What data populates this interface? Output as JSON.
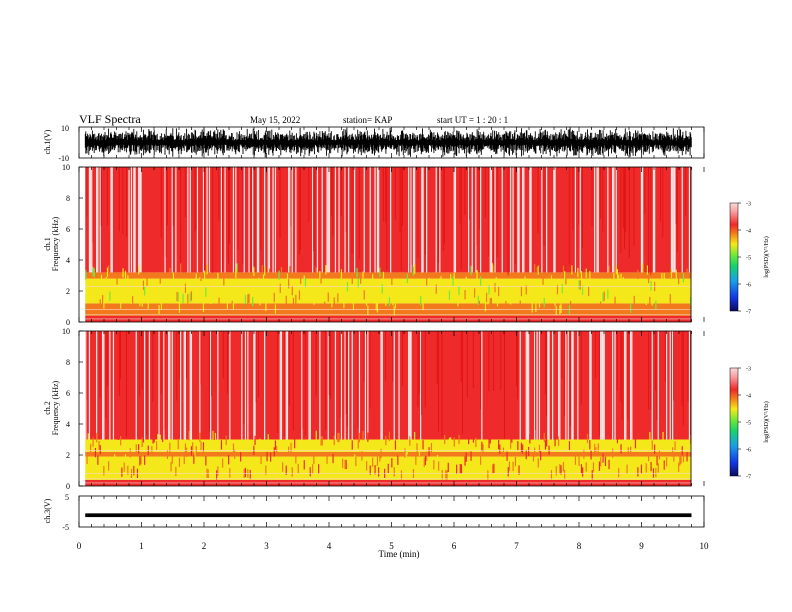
{
  "header": {
    "title": "VLF Spectra",
    "date": "May 15, 2022",
    "station": "station= KAP",
    "start": "start  UT =   1 : 20 : 1"
  },
  "colors": {
    "spectrogram_base": "#ee1c1c",
    "colormap": [
      "#f8dada",
      "#f7a0a0",
      "#ee2a2a",
      "#f27a1c",
      "#f5e81a",
      "#74e83a",
      "#18d26a",
      "#1a9ee8",
      "#1534e0",
      "#0a0a5c"
    ]
  },
  "chart_data": [
    {
      "id": "ch1-waveform",
      "type": "line",
      "ylabel": "ch.1(V)",
      "ylim": [
        -10,
        10
      ],
      "yticks": [
        "10",
        "-10"
      ],
      "xlim": [
        0,
        10
      ],
      "trace": "dense oscillating waveform spanning roughly -10 to 10 V, start ~0.1 min, end ~9.8 min"
    },
    {
      "id": "ch1-spectrogram",
      "type": "heatmap",
      "ylabel_line1": "ch.1",
      "ylabel_line2": "Frequency  (kHz)",
      "ylim": [
        0,
        10
      ],
      "yticks": [
        "10",
        "8",
        "6",
        "4",
        "2",
        "0"
      ],
      "xlim": [
        0,
        10
      ],
      "colorbar": {
        "label": "log(PSD)(V²/Hz)",
        "range": [
          -7,
          -3
        ],
        "ticks": [
          "-3",
          "-4",
          "-5",
          "-6",
          "-7"
        ]
      },
      "bands": [
        {
          "freq_khz": [
            0,
            0.4
          ],
          "level": -3.3
        },
        {
          "freq_khz": [
            0.4,
            1.2
          ],
          "level": -3.8
        },
        {
          "freq_khz": [
            1.2,
            2.8
          ],
          "level": -4.4
        },
        {
          "freq_khz": [
            2.8,
            3.2
          ],
          "level": -4.0
        },
        {
          "freq_khz": [
            3.2,
            10
          ],
          "level": -3.6
        }
      ]
    },
    {
      "id": "ch2-spectrogram",
      "type": "heatmap",
      "ylabel_line1": "ch.2",
      "ylabel_line2": "Frequency  (kHz)",
      "ylim": [
        0,
        10
      ],
      "yticks": [
        "10",
        "8",
        "6",
        "4",
        "2",
        "0"
      ],
      "xlim": [
        0,
        10
      ],
      "colorbar": {
        "label": "log(PSD)(V²/Hz)",
        "range": [
          -7,
          -3
        ],
        "ticks": [
          "-3",
          "-4",
          "-5",
          "-6",
          "-7"
        ]
      },
      "bands": [
        {
          "freq_khz": [
            0,
            0.4
          ],
          "level": -3.3
        },
        {
          "freq_khz": [
            0.4,
            1.9
          ],
          "level": -4.7
        },
        {
          "freq_khz": [
            1.9,
            2.2
          ],
          "level": -3.9
        },
        {
          "freq_khz": [
            2.2,
            3.0
          ],
          "level": -4.5
        },
        {
          "freq_khz": [
            3.0,
            10
          ],
          "level": -3.6
        }
      ]
    },
    {
      "id": "ch3-waveform",
      "type": "line",
      "ylabel": "ch.3(V)",
      "ylim": [
        -5,
        5
      ],
      "yticks": [
        "5",
        "-5"
      ],
      "xlim": [
        0,
        10
      ],
      "xlabel": "Time  (min)",
      "xticks": [
        "0",
        "1",
        "2",
        "3",
        "4",
        "5",
        "6",
        "7",
        "8",
        "9",
        "10"
      ],
      "trace": "narrow band around -1.2 V, start ~0.1 min, end ~9.8 min"
    }
  ]
}
